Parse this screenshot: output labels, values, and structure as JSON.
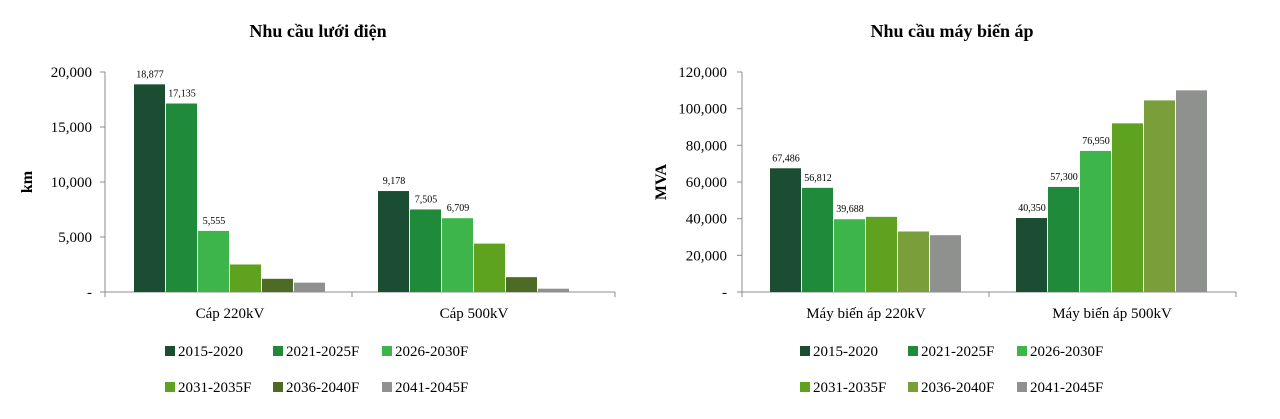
{
  "chart_data": [
    {
      "type": "bar",
      "title": "Nhu cầu lưới điện",
      "xlabel": "",
      "ylabel": "km",
      "ylim": [
        0,
        20000
      ],
      "yticks": [
        0,
        5000,
        10000,
        15000,
        20000
      ],
      "ytick_labels": [
        "-",
        "5,000",
        "10,000",
        "15,000",
        "20,000"
      ],
      "categories": [
        "Cáp 220kV",
        "Cáp 500kV"
      ],
      "legend_position": "bottom",
      "grid": false,
      "series": [
        {
          "name": "2015-2020",
          "color": "#1b4d32",
          "values": [
            18877,
            9178
          ],
          "labels": [
            "18,877",
            "9,178"
          ]
        },
        {
          "name": "2021-2025F",
          "color": "#1e8a3a",
          "values": [
            17135,
            7505
          ],
          "labels": [
            "17,135",
            "7,505"
          ]
        },
        {
          "name": "2026-2030F",
          "color": "#3db54a",
          "values": [
            5555,
            6709
          ],
          "labels": [
            "5,555",
            "6,709"
          ]
        },
        {
          "name": "2031-2035F",
          "color": "#5ea21f",
          "values": [
            2500,
            4400
          ],
          "labels": [
            "",
            ""
          ]
        },
        {
          "name": "2036-2040F",
          "color": "#4d6b24",
          "values": [
            1200,
            1350
          ],
          "labels": [
            "",
            ""
          ]
        },
        {
          "name": "2041-2045F",
          "color": "#8e918e",
          "values": [
            850,
            300
          ],
          "labels": [
            "",
            ""
          ]
        }
      ]
    },
    {
      "type": "bar",
      "title": "Nhu cầu máy biến áp",
      "xlabel": "",
      "ylabel": "MVA",
      "ylim": [
        0,
        120000
      ],
      "yticks": [
        0,
        20000,
        40000,
        60000,
        80000,
        100000,
        120000
      ],
      "ytick_labels": [
        "-",
        "20,000",
        "40,000",
        "60,000",
        "80,000",
        "100,000",
        "120,000"
      ],
      "categories": [
        "Máy biến áp 220kV",
        "Máy biến áp 500kV"
      ],
      "legend_position": "bottom",
      "grid": false,
      "series": [
        {
          "name": "2015-2020",
          "color": "#1b4d32",
          "values": [
            67486,
            40350
          ],
          "labels": [
            "67,486",
            "40,350"
          ]
        },
        {
          "name": "2021-2025F",
          "color": "#1e8a3a",
          "values": [
            56812,
            57300
          ],
          "labels": [
            "56,812",
            "57,300"
          ]
        },
        {
          "name": "2026-2030F",
          "color": "#3db54a",
          "values": [
            39688,
            76950
          ],
          "labels": [
            "39,688",
            "76,950"
          ]
        },
        {
          "name": "2031-2035F",
          "color": "#5ea21f",
          "values": [
            41000,
            92000
          ],
          "labels": [
            "",
            ""
          ]
        },
        {
          "name": "2036-2040F",
          "color": "#7a9e3a",
          "values": [
            33000,
            104500
          ],
          "labels": [
            "",
            ""
          ]
        },
        {
          "name": "2041-2045F",
          "color": "#8e918e",
          "values": [
            31000,
            110000
          ],
          "labels": [
            "",
            ""
          ]
        }
      ]
    }
  ]
}
